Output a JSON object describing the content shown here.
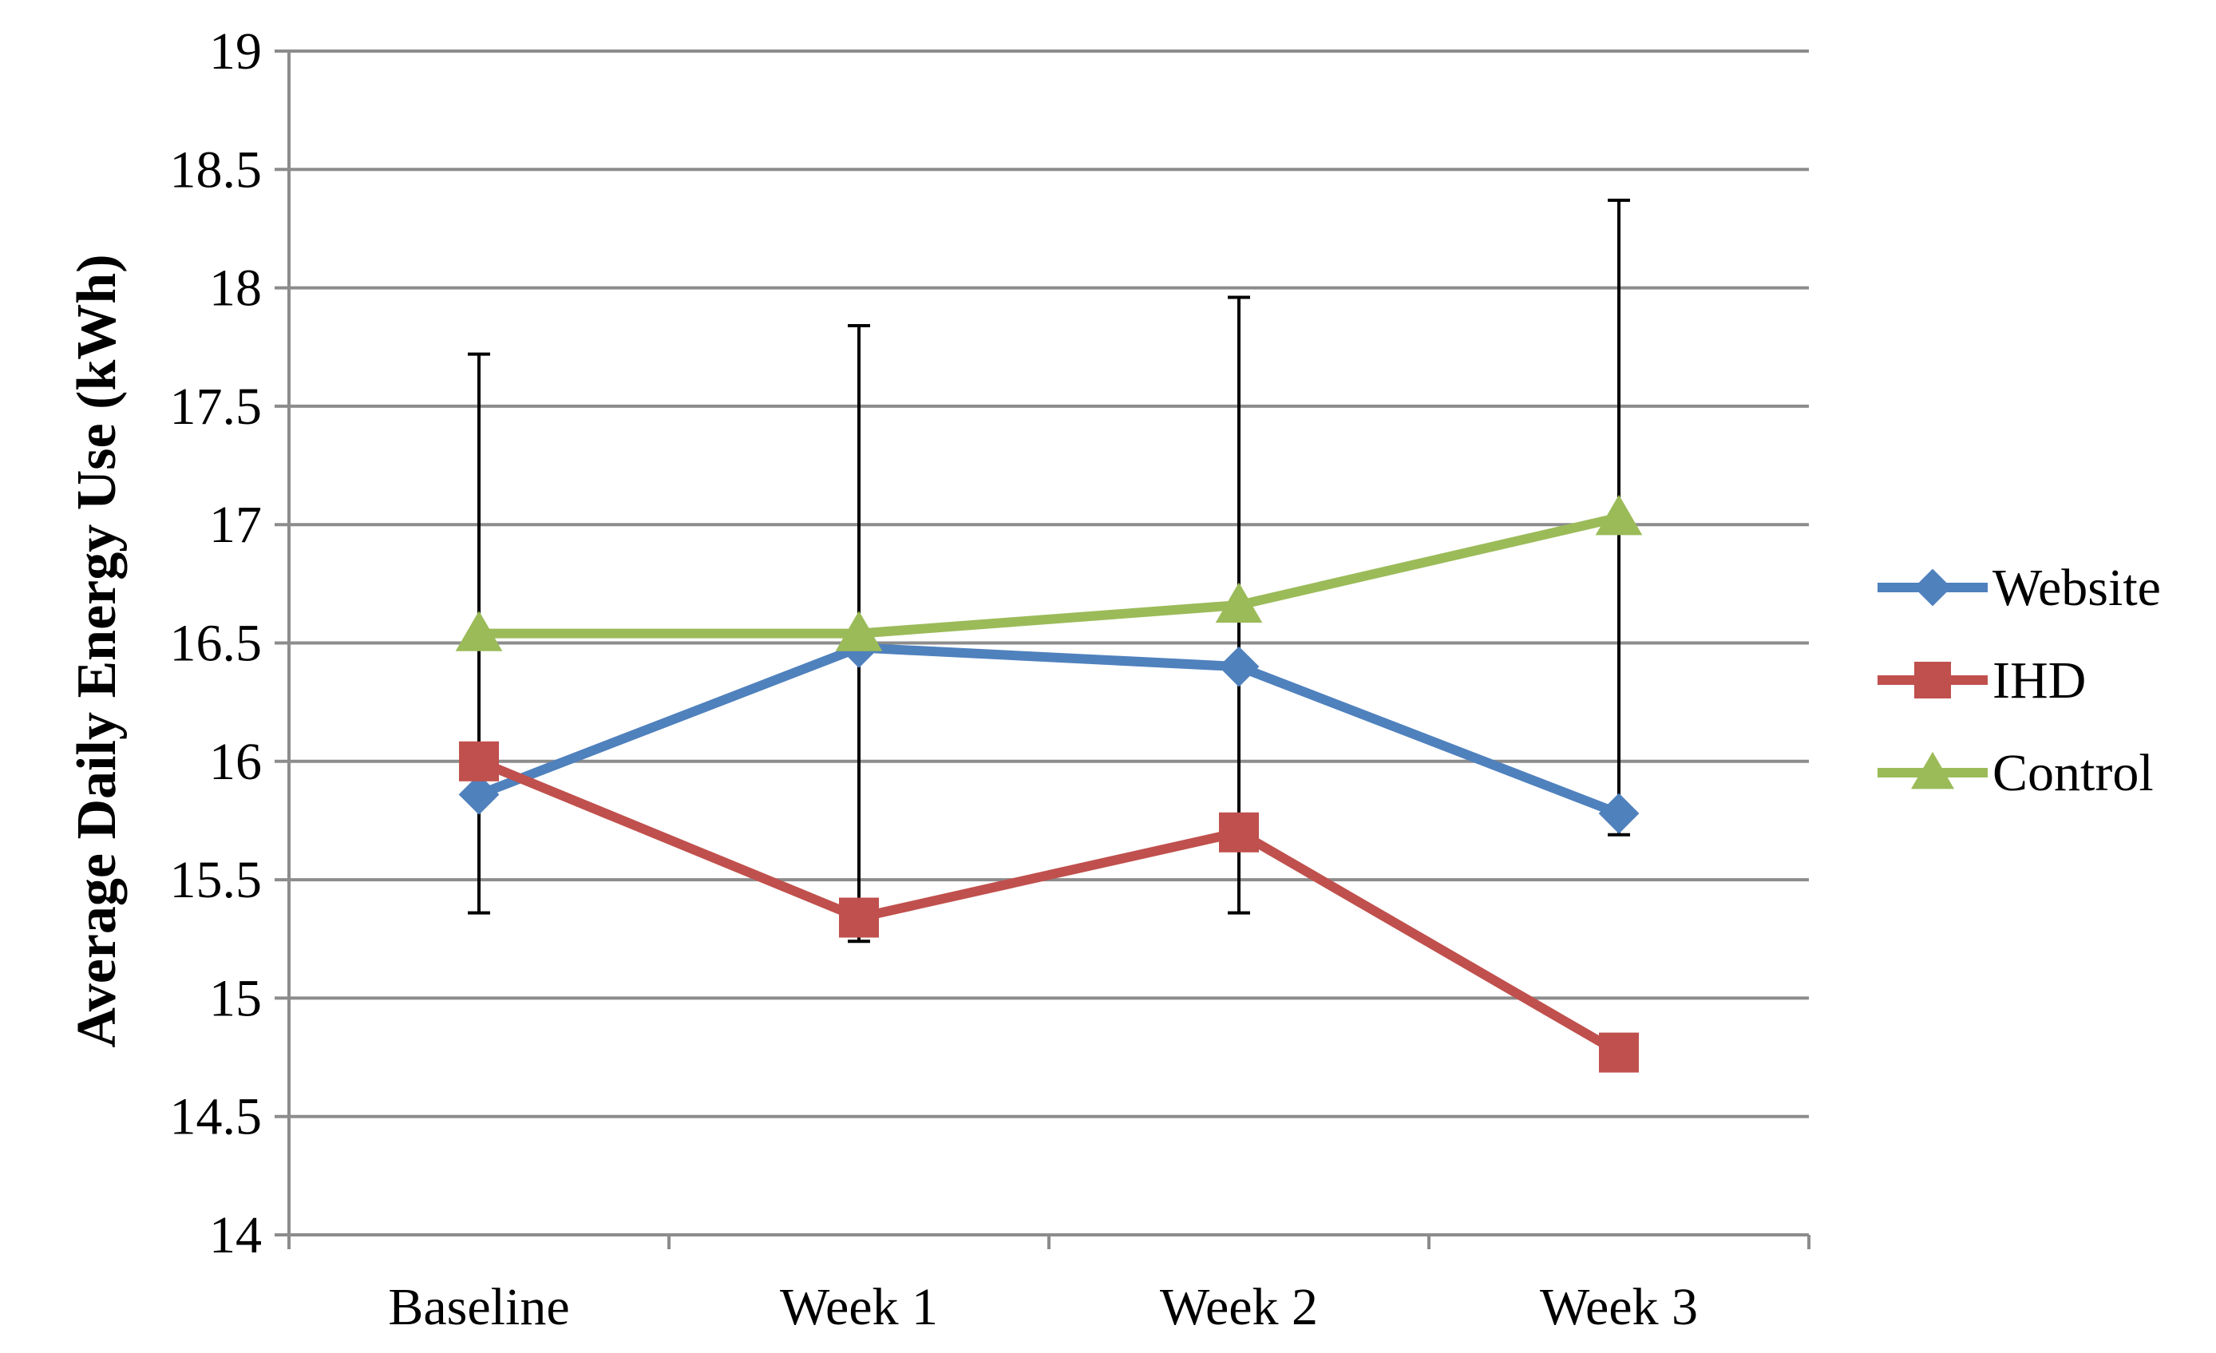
{
  "chart_data": {
    "type": "line",
    "title": "",
    "xlabel": "",
    "ylabel": "Average Daily Energy Use (kWh)",
    "ylim": [
      14,
      19
    ],
    "yticks": [
      "14",
      "14.5",
      "15",
      "15.5",
      "16",
      "16.5",
      "17",
      "17.5",
      "18",
      "18.5",
      "19"
    ],
    "categories": [
      "Baseline",
      "Week 1",
      "Week 2",
      "Week 3"
    ],
    "grid": "horizontal",
    "legend_position": "right",
    "series": [
      {
        "name": "Website",
        "color": "#4F81BD",
        "marker": "diamond",
        "values": [
          15.86,
          16.48,
          16.4,
          15.78
        ]
      },
      {
        "name": "IHD",
        "color": "#C0504D",
        "marker": "square",
        "values": [
          16.0,
          15.34,
          15.7,
          14.77
        ]
      },
      {
        "name": "Control",
        "color": "#9BBB59",
        "marker": "triangle",
        "values": [
          16.54,
          16.54,
          16.66,
          17.03
        ]
      }
    ],
    "error_bars": [
      {
        "category": "Baseline",
        "low": 15.36,
        "high": 17.72
      },
      {
        "category": "Week 1",
        "low": 15.24,
        "high": 17.84
      },
      {
        "category": "Week 2",
        "low": 15.36,
        "high": 17.96
      },
      {
        "category": "Week 3",
        "low": 15.69,
        "high": 18.37
      }
    ]
  }
}
